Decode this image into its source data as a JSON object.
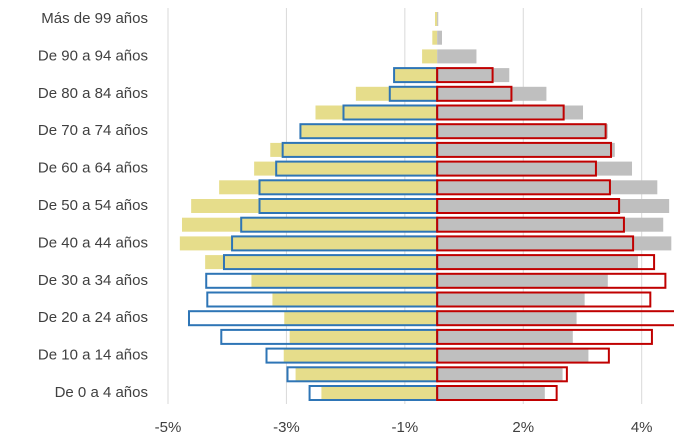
{
  "chart_data": {
    "type": "pyramid",
    "categories": [
      "De 0 a 4 años",
      null,
      "De 10 a 14 años",
      null,
      "De 20 a 24 años",
      null,
      "De 30 a 34 años",
      null,
      "De 40 a 44 años",
      null,
      "De 50 a 54 años",
      null,
      "De 60 a 64 años",
      null,
      "De 70 a 74 años",
      null,
      "De 80 a 84 años",
      null,
      "De 90 a 94 años",
      null,
      "Más de 99 años"
    ],
    "series": [
      {
        "color": "#e6dd8b",
        "style": "fill",
        "values": [
          -2.15,
          -2.63,
          -2.85,
          -2.74,
          -2.84,
          -3.06,
          -3.45,
          -4.31,
          -4.78,
          -4.74,
          -4.57,
          -4.05,
          -3.4,
          -3.1,
          -2.54,
          -2.26,
          -1.51,
          -0.8,
          -0.28,
          -0.09,
          -0.04
        ]
      },
      {
        "color": "#bfbfbf",
        "style": "fill",
        "values": [
          2.0,
          2.33,
          2.81,
          2.52,
          2.59,
          2.74,
          3.17,
          3.73,
          4.35,
          4.2,
          4.31,
          4.09,
          3.62,
          3.3,
          3.17,
          2.71,
          2.03,
          1.34,
          0.73,
          0.09,
          0.02
        ]
      },
      {
        "color": "#2e75b6",
        "style": "outline",
        "values": [
          -2.37,
          -2.78,
          -3.17,
          -4.01,
          -4.61,
          -4.27,
          -4.29,
          -3.96,
          -3.81,
          -3.64,
          -3.3,
          -3.3,
          -2.99,
          -2.87,
          -2.54,
          -1.74,
          -0.88,
          -0.8,
          null,
          null,
          null
        ]
      },
      {
        "color": "#c00000",
        "style": "outline",
        "values": [
          2.22,
          2.41,
          3.19,
          3.99,
          4.5,
          3.96,
          4.24,
          4.03,
          3.64,
          3.47,
          3.38,
          3.21,
          2.95,
          3.23,
          3.13,
          2.35,
          1.38,
          1.03,
          null,
          null,
          null
        ]
      }
    ],
    "xlim": [
      -5,
      4.4
    ],
    "xticks": [
      {
        "value": -5,
        "label": "-5%"
      },
      {
        "value": -2.8,
        "label": "-3%"
      },
      {
        "value": -0.6,
        "label": "-1%"
      },
      {
        "value": 1.6,
        "label": "2%"
      },
      {
        "value": 3.8,
        "label": "4%"
      }
    ],
    "grid": true
  }
}
